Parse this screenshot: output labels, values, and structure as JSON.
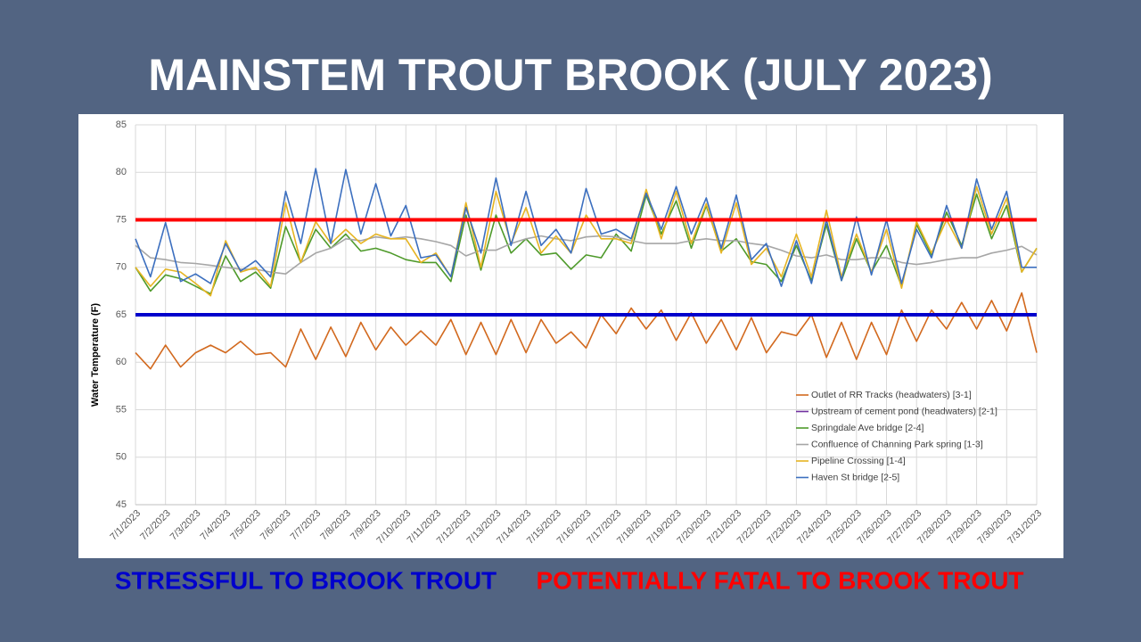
{
  "chart_data": {
    "type": "line",
    "title": "MAINSTEM TROUT BROOK (JULY 2023)",
    "y_label": "Water Temperature (F)",
    "categories": [
      "7/1/2023",
      null,
      "7/2/2023",
      null,
      "7/3/2023",
      null,
      "7/4/2023",
      null,
      "7/5/2023",
      null,
      "7/6/2023",
      null,
      "7/7/2023",
      null,
      "7/8/2023",
      null,
      "7/9/2023",
      null,
      "7/10/2023",
      null,
      "7/11/2023",
      null,
      "7/12/2023",
      null,
      "7/13/2023",
      null,
      "7/14/2023",
      null,
      "7/15/2023",
      null,
      "7/16/2023",
      null,
      "7/17/2023",
      null,
      "7/18/2023",
      null,
      "7/19/2023",
      null,
      "7/20/2023",
      null,
      "7/21/2023",
      null,
      "7/22/2023",
      null,
      "7/23/2023",
      null,
      "7/24/2023",
      null,
      "7/25/2023",
      null,
      "7/26/2023",
      null,
      "7/27/2023",
      null,
      "7/28/2023",
      null,
      "7/29/2023",
      null,
      "7/30/2023",
      null,
      "7/31/2023"
    ],
    "series": [
      {
        "name": "Outlet of RR Tracks (headwaters) [3-1]",
        "color": "#d2691e",
        "values": [
          61,
          59.3,
          61.8,
          59.5,
          61,
          61.8,
          61,
          62.2,
          60.8,
          61,
          59.5,
          63.5,
          60.3,
          63.7,
          60.6,
          64.2,
          61.3,
          63.7,
          61.8,
          63.3,
          61.8,
          64.5,
          60.8,
          64.2,
          60.8,
          64.5,
          61,
          64.5,
          62,
          63.2,
          61.5,
          65,
          63,
          65.7,
          63.5,
          65.5,
          62.3,
          65.2,
          62,
          64.5,
          61.3,
          64.7,
          61,
          63.2,
          62.8,
          65,
          60.5,
          64.2,
          60.3,
          64.2,
          60.8,
          65.5,
          62.2,
          65.5,
          63.5,
          66.3,
          63.5,
          66.5,
          63.3,
          67.3,
          61
        ]
      },
      {
        "name": "Upstream of cement pond (headwaters) [2-1]",
        "color": "#7030a0",
        "values": [
          null,
          null,
          null,
          null,
          null,
          null,
          null,
          null,
          null,
          null,
          null,
          null,
          null,
          null,
          null,
          null,
          null,
          null,
          null,
          null,
          null,
          null,
          null,
          null,
          null,
          null,
          null,
          null,
          null,
          null,
          null,
          null,
          null,
          null,
          null,
          null,
          null,
          null,
          null,
          null,
          null,
          null,
          null,
          null,
          null,
          null,
          null,
          null,
          null,
          null,
          null,
          null,
          null,
          null,
          null,
          null,
          null,
          null,
          null,
          null,
          null
        ]
      },
      {
        "name": "Springdale Ave bridge [2-4]",
        "color": "#4e9a2a",
        "values": [
          70,
          67.5,
          69.2,
          68.8,
          68,
          67.2,
          71.2,
          68.5,
          69.5,
          67.8,
          74.3,
          70.5,
          74,
          72,
          73.5,
          71.7,
          72,
          71.5,
          70.8,
          70.5,
          70.5,
          68.5,
          75.5,
          69.7,
          75.5,
          71.5,
          73,
          71.3,
          71.5,
          69.8,
          71.3,
          71,
          73.5,
          71.7,
          77.6,
          73.5,
          77,
          72,
          76.5,
          71.7,
          73,
          70.6,
          70.3,
          68.5,
          72.3,
          68.6,
          74.5,
          68.6,
          73,
          69.5,
          72.3,
          68,
          74.5,
          71.3,
          75.8,
          72.3,
          77.7,
          73,
          76.5,
          69.5,
          72
        ]
      },
      {
        "name": "Confluence of Channing Park spring [1-3]",
        "color": "#a6a6a6",
        "values": [
          72.3,
          71,
          70.8,
          70.5,
          70.4,
          70.2,
          70,
          69.8,
          69.8,
          69.5,
          69.3,
          70.5,
          71.5,
          72,
          73,
          72.8,
          73.2,
          73,
          73.2,
          73,
          72.7,
          72.3,
          71.2,
          71.8,
          71.8,
          72.5,
          73,
          73.3,
          73,
          72.8,
          73.2,
          73.3,
          73.2,
          72.8,
          72.5,
          72.5,
          72.5,
          72.8,
          73,
          72.8,
          72.8,
          72.5,
          72.3,
          71.8,
          71.2,
          71,
          71.3,
          70.8,
          70.8,
          71,
          71,
          70.5,
          70.3,
          70.5,
          70.8,
          71,
          71,
          71.5,
          71.8,
          72.2,
          71.3
        ]
      },
      {
        "name": "Pipeline Crossing [1-4]",
        "color": "#e6b422",
        "values": [
          70,
          68,
          69.8,
          69.5,
          68.3,
          67,
          72.8,
          69.5,
          70,
          68,
          76.8,
          70.5,
          74.8,
          72.5,
          74,
          72.5,
          73.5,
          73,
          73,
          70.5,
          71.5,
          69,
          76.8,
          70,
          78,
          72.5,
          76.3,
          71.5,
          73.3,
          71.5,
          75.5,
          73,
          73,
          72.5,
          78.2,
          73,
          78,
          72.5,
          76.7,
          71.5,
          76.8,
          70.3,
          72,
          69,
          73.5,
          69,
          76,
          69,
          73.5,
          69.5,
          74,
          67.8,
          74.8,
          71.5,
          75,
          72,
          78.5,
          73.5,
          77.3,
          69.5,
          72
        ]
      },
      {
        "name": "Haven St bridge [2-5]",
        "color": "#3c6fbf",
        "values": [
          73,
          69,
          74.7,
          68.5,
          69.3,
          68.3,
          72.5,
          69.6,
          70.7,
          69,
          78,
          72.5,
          80.4,
          72.5,
          80.3,
          73.5,
          78.8,
          73.3,
          76.5,
          71,
          71.3,
          69,
          76.3,
          71.5,
          79.4,
          72.3,
          78,
          72.3,
          74,
          71.5,
          78.3,
          73.5,
          74,
          73,
          77.8,
          74,
          78.5,
          73.5,
          77.3,
          72,
          77.6,
          70.8,
          72.5,
          68,
          72.8,
          68.3,
          75,
          68.6,
          75.3,
          69.2,
          75,
          68.3,
          74,
          71,
          76.5,
          72,
          79.3,
          74,
          78,
          70,
          70
        ]
      }
    ],
    "reference_lines": [
      {
        "value": 65,
        "color": "#0000cc",
        "label": "STRESSFUL TO BROOK TROUT"
      },
      {
        "value": 75,
        "color": "#ff0000",
        "label": "POTENTIALLY FATAL TO BROOK TROUT"
      }
    ],
    "ylim": [
      45,
      85
    ],
    "yticks": [
      45,
      50,
      55,
      60,
      65,
      70,
      75,
      80,
      85
    ],
    "grid": true,
    "legend": "lower right"
  }
}
